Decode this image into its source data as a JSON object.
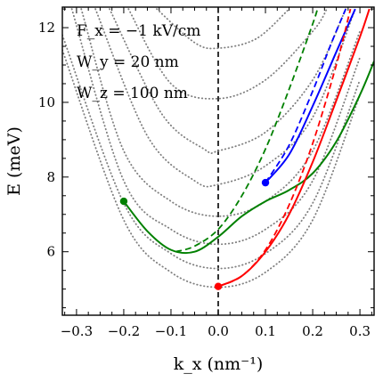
{
  "chart_data": {
    "type": "line",
    "title": "",
    "xlabel": "k_x (nm⁻¹)",
    "ylabel": "E (meV)",
    "xlim": [
      -0.33,
      0.33
    ],
    "ylim": [
      4.3,
      12.55
    ],
    "xticks": [
      -0.3,
      -0.2,
      -0.1,
      0.0,
      0.1,
      0.2,
      0.3
    ],
    "xtick_labels": [
      "−0.3",
      "−0.2",
      "−0.1",
      "0.0",
      "0.1",
      "0.2",
      "0.3"
    ],
    "yticks": [
      6,
      8,
      10,
      12
    ],
    "ytick_labels": [
      "6",
      "8",
      "10",
      "12"
    ],
    "grid": false,
    "annotations": [
      {
        "text": "F_x = −1 kV/cm"
      },
      {
        "text": "W_y = 20 nm"
      },
      {
        "text": "W_z = 100 nm"
      }
    ],
    "vertical_line": {
      "x": 0.0,
      "style": "dashed",
      "color": "#000000"
    },
    "series": [
      {
        "style": "dotted",
        "color": "#808080",
        "points": [
          [
            -0.33,
            11.4
          ],
          [
            -0.2,
            6.85
          ],
          [
            -0.1,
            5.45
          ],
          [
            0.0,
            5.05
          ],
          [
            0.1,
            5.45
          ],
          [
            0.2,
            6.85
          ],
          [
            0.3,
            10.2
          ]
        ]
      },
      {
        "style": "dotted",
        "color": "#808080",
        "points": [
          [
            -0.33,
            11.8
          ],
          [
            -0.2,
            7.3
          ],
          [
            -0.1,
            5.95
          ],
          [
            0.0,
            5.55
          ],
          [
            0.1,
            5.95
          ],
          [
            0.2,
            7.3
          ],
          [
            0.3,
            10.6
          ]
        ]
      },
      {
        "style": "dotted",
        "color": "#808080",
        "points": [
          [
            -0.31,
            12.5
          ],
          [
            -0.2,
            7.9
          ],
          [
            -0.1,
            6.6
          ],
          [
            0.0,
            6.2
          ],
          [
            0.1,
            6.6
          ],
          [
            0.2,
            7.9
          ],
          [
            0.3,
            11.2
          ]
        ]
      },
      {
        "style": "dotted",
        "color": "#808080",
        "points": [
          [
            -0.29,
            12.5
          ],
          [
            -0.2,
            8.7
          ],
          [
            -0.1,
            7.35
          ],
          [
            0.0,
            6.95
          ],
          [
            0.1,
            7.35
          ],
          [
            0.2,
            8.7
          ],
          [
            0.3,
            11.9
          ]
        ]
      },
      {
        "style": "dotted",
        "color": "#808080",
        "points": [
          [
            -0.26,
            12.5
          ],
          [
            -0.15,
            9.1
          ],
          [
            -0.05,
            7.9
          ],
          [
            0.0,
            7.8
          ],
          [
            0.1,
            8.3
          ],
          [
            0.2,
            9.6
          ],
          [
            0.29,
            12.5
          ]
        ]
      },
      {
        "style": "dotted",
        "color": "#808080",
        "points": [
          [
            -0.23,
            12.5
          ],
          [
            -0.12,
            9.7
          ],
          [
            -0.03,
            8.75
          ],
          [
            0.0,
            8.7
          ],
          [
            0.1,
            9.2
          ],
          [
            0.2,
            10.6
          ],
          [
            0.27,
            12.5
          ]
        ]
      },
      {
        "style": "dotted",
        "color": "#808080",
        "points": [
          [
            -0.19,
            12.5
          ],
          [
            -0.1,
            10.5
          ],
          [
            0.0,
            10.1
          ],
          [
            0.1,
            10.6
          ],
          [
            0.2,
            11.9
          ],
          [
            0.23,
            12.5
          ]
        ]
      },
      {
        "style": "dotted",
        "color": "#808080",
        "points": [
          [
            -0.13,
            12.5
          ],
          [
            -0.05,
            11.6
          ],
          [
            0.0,
            11.45
          ],
          [
            0.08,
            11.7
          ],
          [
            0.15,
            12.5
          ]
        ]
      },
      {
        "style": "solid",
        "color": "#008000",
        "points": [
          [
            -0.2,
            7.35
          ],
          [
            -0.15,
            6.55
          ],
          [
            -0.1,
            6.05
          ],
          [
            -0.05,
            6.0
          ],
          [
            0.0,
            6.4
          ],
          [
            0.05,
            6.95
          ],
          [
            0.1,
            7.35
          ],
          [
            0.15,
            7.65
          ],
          [
            0.2,
            8.1
          ],
          [
            0.25,
            8.95
          ],
          [
            0.3,
            10.2
          ],
          [
            0.33,
            11.1
          ]
        ]
      },
      {
        "style": "dashed",
        "color": "#008000",
        "points": [
          [
            -0.09,
            6.0
          ],
          [
            -0.05,
            6.15
          ],
          [
            0.0,
            6.6
          ],
          [
            0.05,
            7.5
          ],
          [
            0.1,
            8.75
          ],
          [
            0.15,
            10.35
          ],
          [
            0.2,
            12.1
          ],
          [
            0.21,
            12.5
          ]
        ]
      },
      {
        "style": "solid",
        "color": "#0000ff",
        "points": [
          [
            0.1,
            7.85
          ],
          [
            0.15,
            8.6
          ],
          [
            0.2,
            9.9
          ],
          [
            0.25,
            11.35
          ],
          [
            0.29,
            12.5
          ]
        ]
      },
      {
        "style": "dashed",
        "color": "#0000ff",
        "points": [
          [
            0.1,
            7.85
          ],
          [
            0.15,
            8.85
          ],
          [
            0.2,
            10.3
          ],
          [
            0.24,
            11.6
          ],
          [
            0.27,
            12.5
          ]
        ]
      },
      {
        "style": "solid",
        "color": "#ff0000",
        "points": [
          [
            0.0,
            5.07
          ],
          [
            0.05,
            5.35
          ],
          [
            0.1,
            6.0
          ],
          [
            0.15,
            7.0
          ],
          [
            0.2,
            8.4
          ],
          [
            0.25,
            10.05
          ],
          [
            0.3,
            11.75
          ],
          [
            0.32,
            12.5
          ]
        ]
      },
      {
        "style": "dashed",
        "color": "#ff0000",
        "points": [
          [
            0.0,
            5.07
          ],
          [
            0.05,
            5.35
          ],
          [
            0.1,
            6.05
          ],
          [
            0.15,
            7.25
          ],
          [
            0.2,
            8.9
          ],
          [
            0.25,
            11.0
          ],
          [
            0.28,
            12.5
          ]
        ]
      }
    ],
    "markers": [
      {
        "x": -0.2,
        "y": 7.35,
        "color": "#008000"
      },
      {
        "x": 0.1,
        "y": 7.85,
        "color": "#0000ff"
      },
      {
        "x": 0.0,
        "y": 5.07,
        "color": "#ff0000"
      }
    ]
  }
}
